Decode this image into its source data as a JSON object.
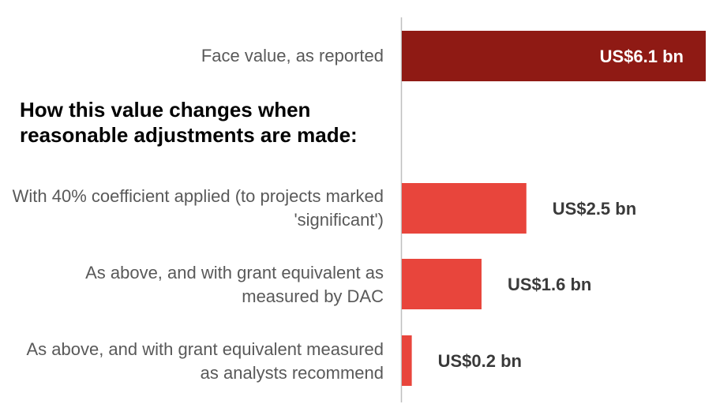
{
  "colors": {
    "reported_bar": "#8f1a14",
    "adjusted_bar": "#e8453c",
    "axis_line": "#bfbfbf",
    "label_text": "#595959",
    "value_text_dark": "#3a3a3a",
    "value_text_light": "#ffffff"
  },
  "section_heading": "How this value changes when reasonable adjustments are made:",
  "chart_data": {
    "type": "bar",
    "orientation": "horizontal",
    "categories": [
      "Face value, as reported",
      "With 40% coefficient applied (to projects marked 'significant')",
      "As above, and with grant equivalent as measured by DAC",
      "As above, and with grant equivalent measured as analysts recommend"
    ],
    "values": [
      6.1,
      2.5,
      1.6,
      0.2
    ],
    "value_labels": [
      "US$6.1 bn",
      "US$2.5 bn",
      "US$1.6 bn",
      "US$0.2 bn"
    ],
    "unit": "US$ bn",
    "xlim": [
      0,
      6.1
    ],
    "grid": false,
    "legend": "none"
  }
}
